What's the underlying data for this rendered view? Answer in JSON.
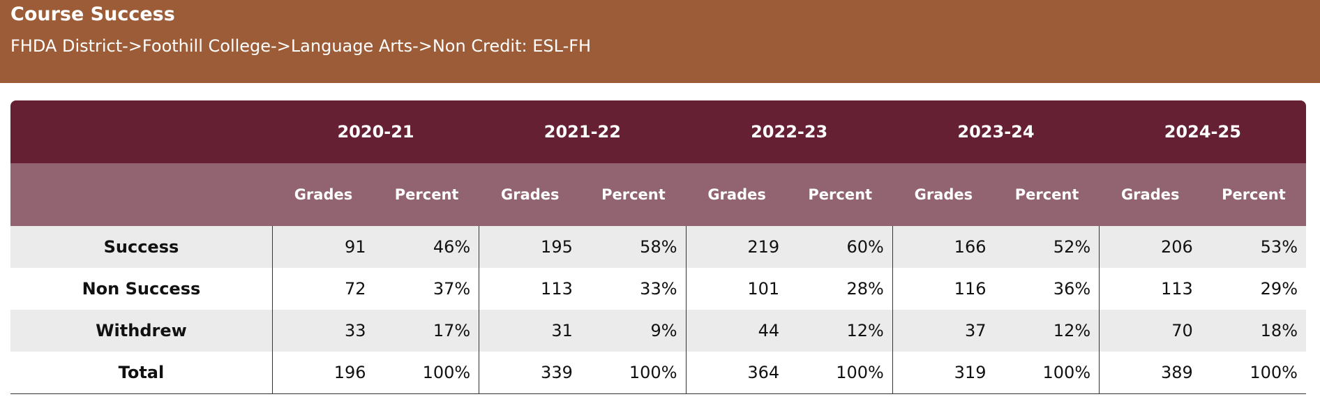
{
  "header": {
    "title": "Course Success",
    "breadcrumb": "FHDA District->Foothill College->Language Arts->Non Credit: ESL-FH"
  },
  "colors": {
    "header_bg": "#9c5c37",
    "year_row_bg": "#652034",
    "subheader_bg": "#926472",
    "stripe_bg": "#ebebeb"
  },
  "table": {
    "years": [
      "2020-21",
      "2021-22",
      "2022-23",
      "2023-24",
      "2024-25"
    ],
    "sub_headers": [
      "Grades",
      "Percent"
    ],
    "rows": [
      {
        "label": "Success",
        "cells": [
          "91",
          "46%",
          "195",
          "58%",
          "219",
          "60%",
          "166",
          "52%",
          "206",
          "53%"
        ]
      },
      {
        "label": "Non Success",
        "cells": [
          "72",
          "37%",
          "113",
          "33%",
          "101",
          "28%",
          "116",
          "36%",
          "113",
          "29%"
        ]
      },
      {
        "label": "Withdrew",
        "cells": [
          "33",
          "17%",
          "31",
          "9%",
          "44",
          "12%",
          "37",
          "12%",
          "70",
          "18%"
        ]
      },
      {
        "label": "Total",
        "cells": [
          "196",
          "100%",
          "339",
          "100%",
          "364",
          "100%",
          "319",
          "100%",
          "389",
          "100%"
        ]
      }
    ]
  }
}
